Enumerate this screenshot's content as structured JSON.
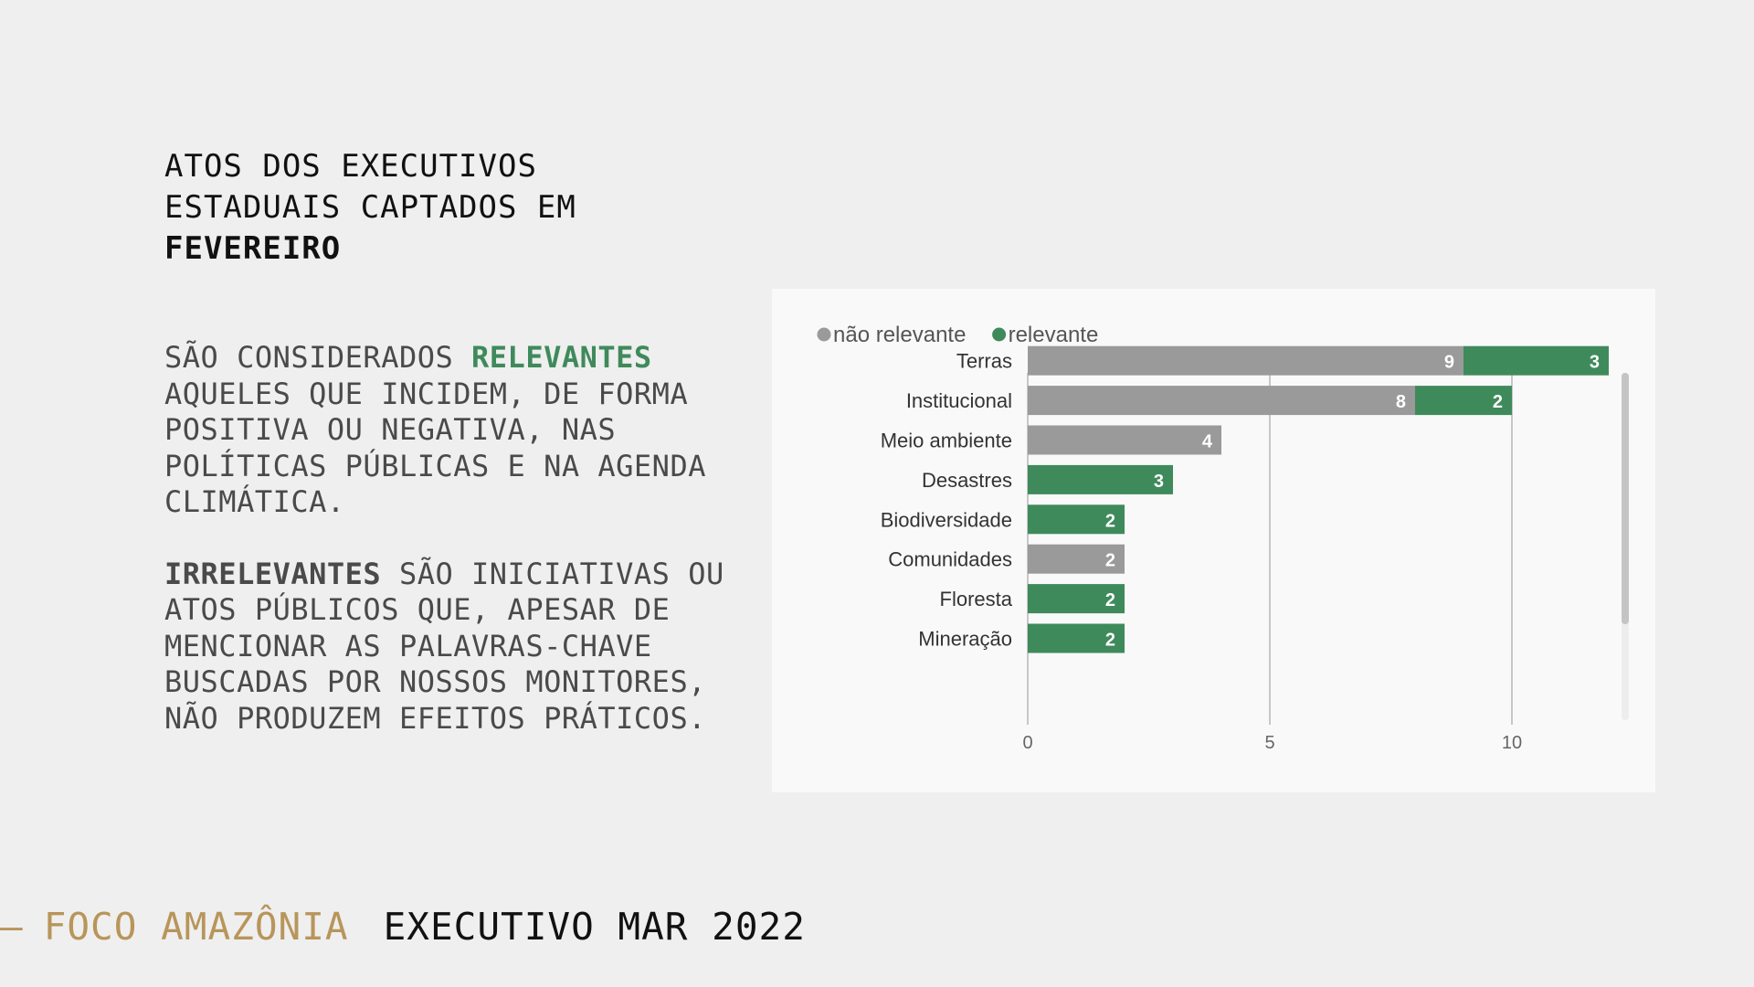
{
  "title": {
    "line1": "ATOS DOS EXECUTIVOS",
    "line2": "ESTADUAIS CAPTADOS EM",
    "line3": "FEVEREIRO"
  },
  "description": {
    "p1_prefix": "SÃO CONSIDERADOS ",
    "p1_highlight": "RELEVANTES",
    "p1_rest": " AQUELES QUE INCIDEM, DE FORMA POSITIVA OU NEGATIVA, NAS POLÍTICAS PÚBLICAS E NA AGENDA CLIMÁTICA.",
    "p2_highlight": "IRRELEVANTES",
    "p2_rest": " SÃO INICIATIVAS OU ATOS PÚBLICOS QUE, APESAR DE MENCIONAR AS PALAVRAS-CHAVE BUSCADAS POR NOSSOS MONITORES, NÃO PRODUZEM EFEITOS PRÁTICOS."
  },
  "footer": {
    "dash": "–",
    "brand": "FOCO AMAZÔNIA",
    "edition": "EXECUTIVO MAR 2022"
  },
  "colors": {
    "relevante": "#3f8a5b",
    "nao_relevante": "#9a9a9a",
    "brand": "#b8955a"
  },
  "chart_data": {
    "type": "bar",
    "orientation": "horizontal",
    "stacked": true,
    "categories": [
      "Terras",
      "Institucional",
      "Meio ambiente",
      "Desastres",
      "Biodiversidade",
      "Comunidades",
      "Floresta",
      "Mineração"
    ],
    "series": [
      {
        "name": "não relevante",
        "color": "#9a9a9a",
        "values": [
          9,
          8,
          4,
          0,
          0,
          2,
          0,
          0
        ]
      },
      {
        "name": "relevante",
        "color": "#3f8a5b",
        "values": [
          3,
          2,
          0,
          3,
          2,
          0,
          2,
          2
        ]
      }
    ],
    "xlim": [
      0,
      12.5
    ],
    "xticks": [
      0,
      5,
      10
    ],
    "grid": true,
    "legend_position": "top-left",
    "data_labels": true
  }
}
